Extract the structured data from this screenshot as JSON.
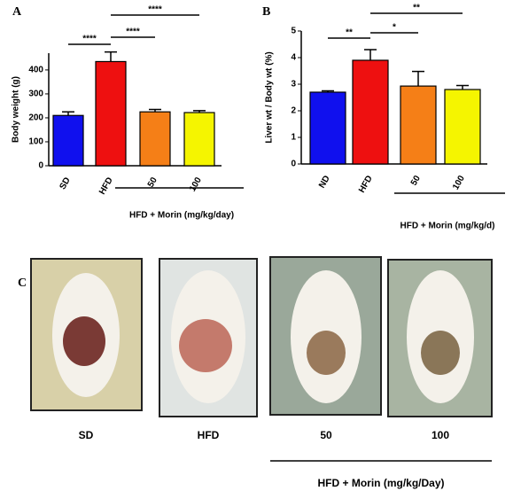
{
  "chart_data": [
    {
      "type": "bar",
      "panel": "A",
      "y_label": "Body weight (g)",
      "categories": [
        "SD",
        "HFD",
        "50",
        "100"
      ],
      "values": [
        210,
        435,
        225,
        222
      ],
      "errors": [
        15,
        40,
        10,
        8
      ],
      "colors": [
        "#1010ee",
        "#ee1010",
        "#f57f17",
        "#f5f500"
      ],
      "ylim": [
        0,
        470
      ],
      "yticks": [
        0,
        100,
        200,
        300,
        400
      ],
      "annotations": [
        "****",
        "****",
        "****"
      ],
      "group_label": "HFD + Morin (mg/kg/day)"
    },
    {
      "type": "bar",
      "panel": "B",
      "y_label": "Liver wt / Body wt (%)",
      "categories": [
        "ND",
        "HFD",
        "50",
        "100"
      ],
      "values": [
        2.7,
        3.9,
        2.93,
        2.8
      ],
      "errors": [
        0.05,
        0.4,
        0.55,
        0.15
      ],
      "colors": [
        "#1010ee",
        "#ee1010",
        "#f57f17",
        "#f5f500"
      ],
      "ylim": [
        0,
        5
      ],
      "yticks": [
        0,
        1,
        2,
        3,
        4,
        5
      ],
      "annotations": [
        "**",
        "**",
        "*"
      ],
      "group_label": "HFD + Morin (mg/kg/d)"
    }
  ],
  "panel_c": {
    "label": "C",
    "captions": [
      "SD",
      "HFD",
      "50",
      "100"
    ],
    "group_label": "HFD +  Morin (mg/kg/Day)"
  }
}
